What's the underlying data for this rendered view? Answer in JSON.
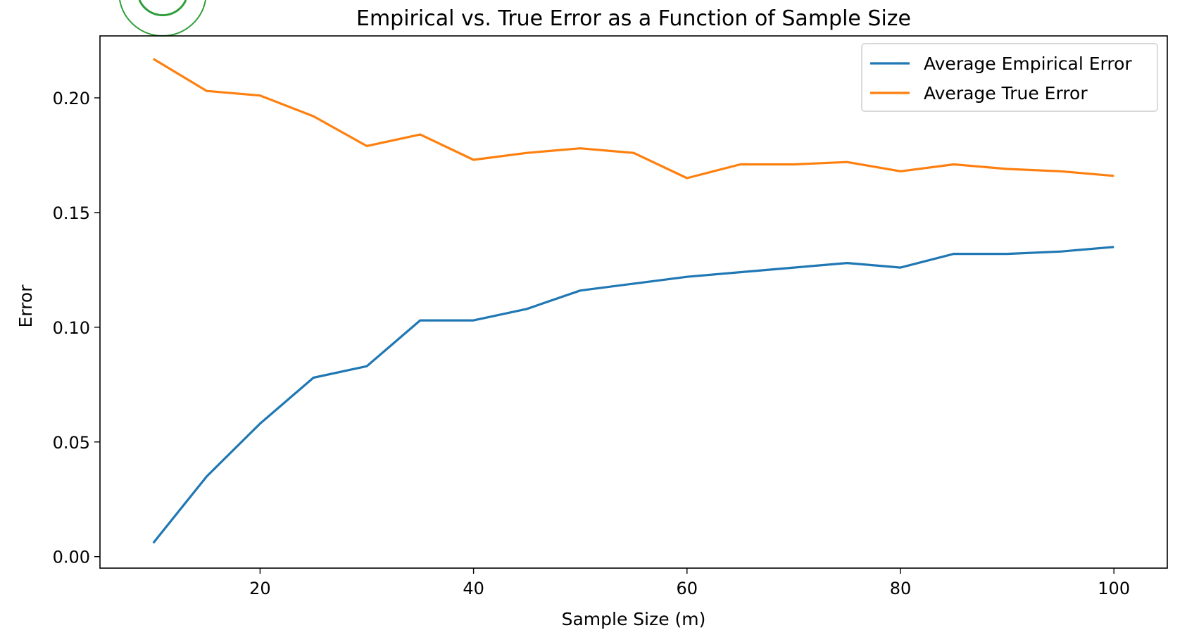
{
  "chart_data": {
    "type": "line",
    "title": "Empirical vs. True Error as a Function of Sample Size",
    "xlabel": "Sample Size (m)",
    "ylabel": "Error",
    "xlim": [
      5,
      105
    ],
    "ylim": [
      -0.005,
      0.227
    ],
    "xticks": [
      20,
      40,
      60,
      80,
      100
    ],
    "xtick_labels": [
      "20",
      "40",
      "60",
      "80",
      "100"
    ],
    "yticks": [
      0.0,
      0.05,
      0.1,
      0.15,
      0.2
    ],
    "ytick_labels": [
      "0.00",
      "0.05",
      "0.10",
      "0.15",
      "0.20"
    ],
    "grid": false,
    "legend_position": "top-right",
    "x": [
      10,
      15,
      20,
      25,
      30,
      35,
      40,
      45,
      50,
      55,
      60,
      65,
      70,
      75,
      80,
      85,
      90,
      95,
      100
    ],
    "series": [
      {
        "name": "Average Empirical Error",
        "color": "#1f77b4",
        "values": [
          0.006,
          0.035,
          0.058,
          0.078,
          0.083,
          0.103,
          0.103,
          0.108,
          0.116,
          0.119,
          0.122,
          0.124,
          0.126,
          0.128,
          0.126,
          0.132,
          0.132,
          0.133,
          0.135
        ]
      },
      {
        "name": "Average True Error",
        "color": "#ff7f0e",
        "values": [
          0.217,
          0.203,
          0.201,
          0.192,
          0.179,
          0.184,
          0.173,
          0.176,
          0.178,
          0.176,
          0.165,
          0.171,
          0.171,
          0.172,
          0.168,
          0.171,
          0.169,
          0.168,
          0.166
        ]
      }
    ]
  }
}
